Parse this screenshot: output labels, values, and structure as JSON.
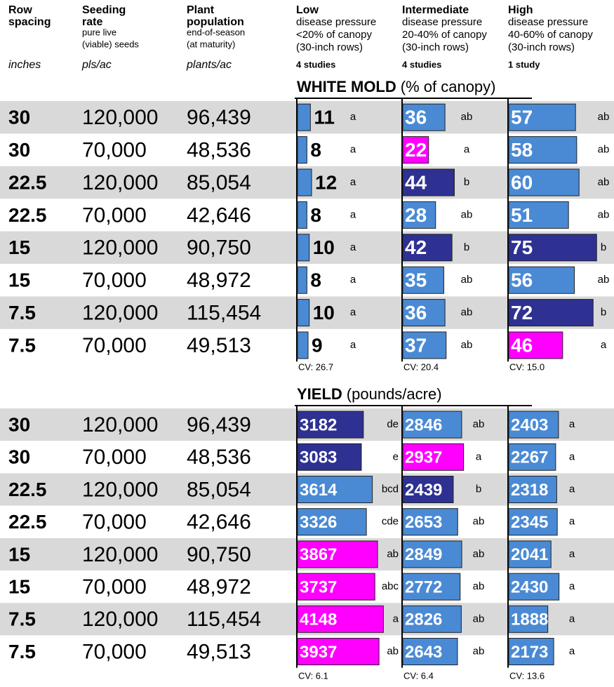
{
  "header": {
    "columns": [
      {
        "title": [
          "Row",
          "spacing"
        ],
        "notes": [],
        "unit": "inches"
      },
      {
        "title": [
          "Seeding",
          "rate"
        ],
        "notes": [
          "pure live",
          "(viable) seeds"
        ],
        "unit": "pls/ac"
      },
      {
        "title": [
          "Plant",
          "population"
        ],
        "notes": [
          "end-of-season",
          "(at maturity)"
        ],
        "unit": "plants/ac"
      },
      {
        "title": [
          "Low"
        ],
        "notes": [
          "disease pressure",
          "<20% of canopy",
          "(30-inch rows)"
        ],
        "studies": "4 studies"
      },
      {
        "title": [
          "Intermediate"
        ],
        "notes": [
          "disease pressure",
          "20-40% of canopy",
          "(30-inch rows)"
        ],
        "studies": "4 studies"
      },
      {
        "title": [
          "High"
        ],
        "notes": [
          "disease pressure",
          "40-60% of canopy",
          "(30-inch rows)"
        ],
        "studies": "1 study"
      }
    ]
  },
  "sections": [
    {
      "title": "WHITE MOLD",
      "subtitle": "(% of canopy)",
      "cv": [
        "CV: 26.7",
        "CV: 20.4",
        "CV: 15.0"
      ],
      "rows": [
        {
          "spacing": "30",
          "seeding": "120,000",
          "population": "96,439",
          "cells": [
            {
              "value": 11,
              "letters": "a",
              "color": "#4a8ad4"
            },
            {
              "value": 36,
              "letters": "ab",
              "color": "#4a8ad4"
            },
            {
              "value": 57,
              "letters": "ab",
              "color": "#4a8ad4"
            }
          ]
        },
        {
          "spacing": "30",
          "seeding": "70,000",
          "population": "48,536",
          "cells": [
            {
              "value": 8,
              "letters": "a",
              "color": "#4a8ad4"
            },
            {
              "value": 22,
              "letters": "a",
              "color": "#ff00ff"
            },
            {
              "value": 58,
              "letters": "ab",
              "color": "#4a8ad4"
            }
          ]
        },
        {
          "spacing": "22.5",
          "seeding": "120,000",
          "population": "85,054",
          "cells": [
            {
              "value": 12,
              "letters": "a",
              "color": "#4a8ad4"
            },
            {
              "value": 44,
              "letters": "b",
              "color": "#2e3192"
            },
            {
              "value": 60,
              "letters": "ab",
              "color": "#4a8ad4"
            }
          ]
        },
        {
          "spacing": "22.5",
          "seeding": "70,000",
          "population": "42,646",
          "cells": [
            {
              "value": 8,
              "letters": "a",
              "color": "#4a8ad4"
            },
            {
              "value": 28,
              "letters": "ab",
              "color": "#4a8ad4"
            },
            {
              "value": 51,
              "letters": "ab",
              "color": "#4a8ad4"
            }
          ]
        },
        {
          "spacing": "15",
          "seeding": "120,000",
          "population": "90,750",
          "cells": [
            {
              "value": 10,
              "letters": "a",
              "color": "#4a8ad4"
            },
            {
              "value": 42,
              "letters": "b",
              "color": "#2e3192"
            },
            {
              "value": 75,
              "letters": "b",
              "color": "#2e3192"
            }
          ]
        },
        {
          "spacing": "15",
          "seeding": "70,000",
          "population": "48,972",
          "cells": [
            {
              "value": 8,
              "letters": "a",
              "color": "#4a8ad4"
            },
            {
              "value": 35,
              "letters": "ab",
              "color": "#4a8ad4"
            },
            {
              "value": 56,
              "letters": "ab",
              "color": "#4a8ad4"
            }
          ]
        },
        {
          "spacing": "7.5",
          "seeding": "120,000",
          "population": "115,454",
          "cells": [
            {
              "value": 10,
              "letters": "a",
              "color": "#4a8ad4"
            },
            {
              "value": 36,
              "letters": "ab",
              "color": "#4a8ad4"
            },
            {
              "value": 72,
              "letters": "b",
              "color": "#2e3192"
            }
          ]
        },
        {
          "spacing": "7.5",
          "seeding": "70,000",
          "population": "49,513",
          "cells": [
            {
              "value": 9,
              "letters": "a",
              "color": "#4a8ad4"
            },
            {
              "value": 37,
              "letters": "ab",
              "color": "#4a8ad4"
            },
            {
              "value": 46,
              "letters": "a",
              "color": "#ff00ff"
            }
          ]
        }
      ]
    },
    {
      "title": "YIELD",
      "subtitle": "(pounds/acre)",
      "cv": [
        "CV: 6.1",
        "CV: 6.4",
        "CV: 13.6"
      ],
      "rows": [
        {
          "spacing": "30",
          "seeding": "120,000",
          "population": "96,439",
          "cells": [
            {
              "value": 3182,
              "letters": "de",
              "color": "#2e3192"
            },
            {
              "value": 2846,
              "letters": "ab",
              "color": "#4a8ad4"
            },
            {
              "value": 2403,
              "letters": "a",
              "color": "#4a8ad4"
            }
          ]
        },
        {
          "spacing": "30",
          "seeding": "70,000",
          "population": "48,536",
          "cells": [
            {
              "value": 3083,
              "letters": "e",
              "color": "#2e3192"
            },
            {
              "value": 2937,
              "letters": "a",
              "color": "#ff00ff"
            },
            {
              "value": 2267,
              "letters": "a",
              "color": "#4a8ad4"
            }
          ]
        },
        {
          "spacing": "22.5",
          "seeding": "120,000",
          "population": "85,054",
          "cells": [
            {
              "value": 3614,
              "letters": "bcd",
              "color": "#4a8ad4"
            },
            {
              "value": 2439,
              "letters": "b",
              "color": "#2e3192"
            },
            {
              "value": 2318,
              "letters": "a",
              "color": "#4a8ad4"
            }
          ]
        },
        {
          "spacing": "22.5",
          "seeding": "70,000",
          "population": "42,646",
          "cells": [
            {
              "value": 3326,
              "letters": "cde",
              "color": "#4a8ad4"
            },
            {
              "value": 2653,
              "letters": "ab",
              "color": "#4a8ad4"
            },
            {
              "value": 2345,
              "letters": "a",
              "color": "#4a8ad4"
            }
          ]
        },
        {
          "spacing": "15",
          "seeding": "120,000",
          "population": "90,750",
          "cells": [
            {
              "value": 3867,
              "letters": "ab",
              "color": "#ff00ff"
            },
            {
              "value": 2849,
              "letters": "ab",
              "color": "#4a8ad4"
            },
            {
              "value": 2041,
              "letters": "a",
              "color": "#4a8ad4"
            }
          ]
        },
        {
          "spacing": "15",
          "seeding": "70,000",
          "population": "48,972",
          "cells": [
            {
              "value": 3737,
              "letters": "abc",
              "color": "#ff00ff"
            },
            {
              "value": 2772,
              "letters": "ab",
              "color": "#4a8ad4"
            },
            {
              "value": 2430,
              "letters": "a",
              "color": "#4a8ad4"
            }
          ]
        },
        {
          "spacing": "7.5",
          "seeding": "120,000",
          "population": "115,454",
          "cells": [
            {
              "value": 4148,
              "letters": "a",
              "color": "#ff00ff"
            },
            {
              "value": 2826,
              "letters": "ab",
              "color": "#4a8ad4"
            },
            {
              "value": 1888,
              "letters": "a",
              "color": "#4a8ad4"
            }
          ]
        },
        {
          "spacing": "7.5",
          "seeding": "70,000",
          "population": "49,513",
          "cells": [
            {
              "value": 3937,
              "letters": "ab",
              "color": "#ff00ff"
            },
            {
              "value": 2643,
              "letters": "ab",
              "color": "#4a8ad4"
            },
            {
              "value": 2173,
              "letters": "a",
              "color": "#4a8ad4"
            }
          ]
        }
      ]
    }
  ]
}
